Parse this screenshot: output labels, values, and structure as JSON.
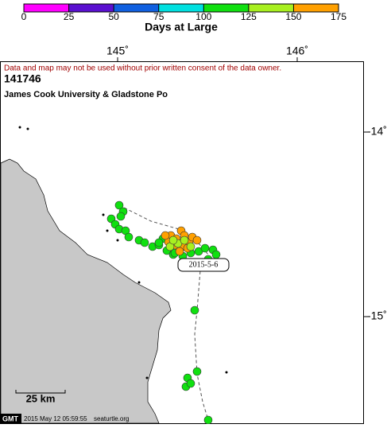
{
  "colorbar": {
    "label": "Days at Large",
    "range": [
      0,
      175
    ],
    "ticks": [
      0,
      25,
      50,
      75,
      100,
      125,
      150,
      175
    ],
    "colors": [
      "#ff00ff",
      "#5a10d0",
      "#1060e0",
      "#00e0e0",
      "#10e010",
      "#a8f020",
      "#ffa000"
    ]
  },
  "map": {
    "lon_labels": [
      "145˚",
      "146˚"
    ],
    "lat_labels": [
      "-14˚",
      "-15˚"
    ],
    "notice": "Data and map may not be used without prior written consent of the data owner.",
    "id": "141746",
    "owner": "James Cook University & Gladstone Po",
    "date_label": "2015-5-6",
    "scale_label": "25 km"
  },
  "footer": {
    "gmt": "GMT",
    "timestamp": "2015 May 12 05:59:55",
    "site": "seaturtle.org"
  }
}
